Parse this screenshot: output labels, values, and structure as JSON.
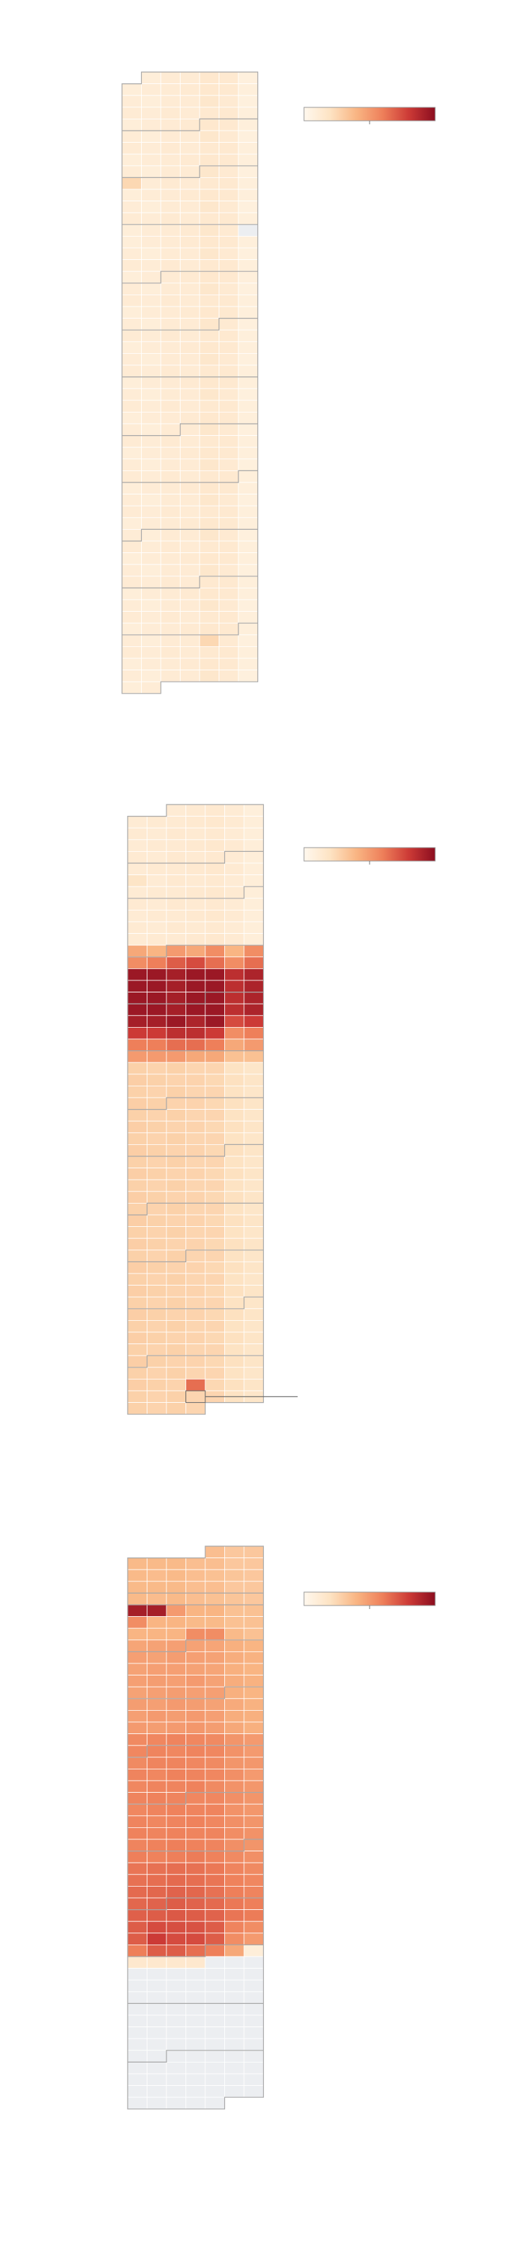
{
  "chart_data": [
    {
      "type": "heatmap",
      "clim": [
        0,
        100
      ],
      "colors": [
        "#fff8ee",
        "#fde3c3",
        "#f9b583",
        "#ee7f5a",
        "#cc3a36",
        "#8b0d1f"
      ],
      "null_color": "#eceef1",
      "values": [
        10,
        12,
        12,
        15,
        14,
        8,
        10,
        11,
        12,
        13,
        15,
        14,
        9,
        11,
        10,
        12,
        12,
        16,
        13,
        8,
        12,
        11,
        13,
        12,
        14,
        14,
        9,
        10,
        11,
        12,
        13,
        15,
        14,
        9,
        11,
        10,
        12,
        12,
        16,
        13,
        8,
        12,
        11,
        13,
        12,
        14,
        14,
        9,
        10,
        11,
        12,
        13,
        15,
        14,
        9,
        11,
        10,
        12,
        12,
        16,
        13,
        8,
        25,
        11,
        13,
        12,
        14,
        14,
        9,
        10,
        11,
        12,
        13,
        15,
        14,
        9,
        11,
        10,
        12,
        12,
        16,
        13,
        8,
        12,
        11,
        13,
        12,
        14,
        14,
        9,
        10,
        11,
        12,
        13,
        16,
        13,
        null,
        10,
        11,
        12,
        13,
        15,
        14,
        9,
        11,
        10,
        12,
        12,
        16,
        13,
        8,
        12,
        11,
        13,
        12,
        14,
        14,
        9,
        10,
        11,
        12,
        13,
        15,
        14,
        9,
        11,
        10,
        12,
        12,
        16,
        13,
        8,
        12,
        11,
        13,
        12,
        14,
        14,
        9,
        10,
        11,
        12,
        13,
        15,
        14,
        9,
        11,
        10,
        12,
        12,
        16,
        13,
        8,
        12,
        11,
        13,
        12,
        14,
        14,
        9,
        10,
        11,
        12,
        13,
        15,
        14,
        9,
        11,
        10,
        12,
        12,
        16,
        13,
        8,
        12,
        11,
        13,
        12,
        14,
        14,
        9,
        10,
        11,
        12,
        13,
        15,
        14,
        9,
        11,
        10,
        12,
        12,
        16,
        13,
        8,
        12,
        11,
        13,
        12,
        14,
        14,
        9,
        10,
        11,
        12,
        13,
        15,
        14,
        9,
        11,
        10,
        12,
        12,
        16,
        13,
        8,
        12,
        11,
        13,
        12,
        14,
        14,
        9,
        10,
        11,
        12,
        13,
        15,
        14,
        9,
        11,
        10,
        12,
        12,
        16,
        13,
        8,
        12,
        11,
        13,
        12,
        14,
        14,
        9,
        10,
        11,
        12,
        13,
        15,
        14,
        9,
        11,
        10,
        12,
        12,
        16,
        13,
        8,
        12,
        11,
        13,
        12,
        14,
        14,
        9,
        10,
        11,
        12,
        13,
        15,
        14,
        9,
        11,
        10,
        12,
        12,
        16,
        13,
        8,
        12,
        11,
        13,
        12,
        14,
        14,
        9,
        10,
        11,
        12,
        13,
        15,
        14,
        9,
        11,
        10,
        12,
        12,
        16,
        13,
        8,
        12,
        11,
        13,
        12,
        14,
        14,
        9,
        10,
        11,
        12,
        13,
        15,
        14,
        9,
        11,
        10,
        12,
        12,
        16,
        13,
        8,
        12,
        11,
        13,
        12,
        14,
        14,
        9,
        10,
        11,
        12,
        13,
        15,
        14,
        9,
        11,
        10,
        12,
        12,
        25,
        13,
        8,
        12,
        11,
        13,
        12,
        14,
        14,
        9,
        10,
        11,
        12,
        13,
        15,
        14,
        9,
        11,
        10,
        12,
        12,
        16,
        13,
        8,
        10,
        11
      ]
    },
    {
      "type": "heatmap",
      "clim": [
        0,
        100
      ],
      "colors": [
        "#fff8ee",
        "#fde3c3",
        "#f9b583",
        "#ee7f5a",
        "#cc3a36",
        "#8b0d1f"
      ],
      "null_color": "#eceef1",
      "values": [
        12,
        13,
        14,
        12,
        9,
        12,
        13,
        13,
        14,
        15,
        13,
        10,
        13,
        12,
        14,
        13,
        14,
        12,
        10,
        12,
        13,
        13,
        14,
        15,
        13,
        10,
        13,
        12,
        14,
        13,
        14,
        12,
        10,
        12,
        13,
        13,
        14,
        15,
        13,
        10,
        18,
        12,
        14,
        13,
        14,
        12,
        10,
        12,
        13,
        13,
        14,
        15,
        13,
        10,
        13,
        12,
        14,
        13,
        14,
        12,
        10,
        12,
        13,
        13,
        14,
        15,
        13,
        10,
        13,
        12,
        14,
        13,
        14,
        12,
        10,
        12,
        13,
        13,
        14,
        15,
        13,
        10,
        45,
        40,
        50,
        45,
        55,
        40,
        55,
        55,
        60,
        70,
        75,
        65,
        55,
        65,
        95,
        95,
        92,
        95,
        95,
        85,
        90,
        95,
        95,
        92,
        95,
        95,
        85,
        90,
        95,
        95,
        92,
        95,
        95,
        85,
        90,
        95,
        95,
        92,
        95,
        95,
        85,
        90,
        92,
        92,
        95,
        90,
        95,
        75,
        80,
        80,
        80,
        85,
        85,
        80,
        55,
        60,
        60,
        60,
        65,
        65,
        60,
        45,
        50,
        50,
        50,
        50,
        45,
        45,
        35,
        35,
        28,
        27,
        28,
        26,
        26,
        20,
        17,
        29,
        28,
        27,
        27,
        25,
        21,
        18,
        28,
        27,
        28,
        26,
        26,
        20,
        17,
        29,
        28,
        27,
        27,
        25,
        21,
        18,
        28,
        27,
        28,
        26,
        26,
        20,
        17,
        29,
        28,
        27,
        27,
        25,
        21,
        18,
        28,
        27,
        28,
        26,
        26,
        20,
        17,
        29,
        28,
        27,
        27,
        25,
        21,
        18,
        28,
        27,
        28,
        26,
        26,
        20,
        17,
        29,
        28,
        27,
        27,
        25,
        21,
        18,
        28,
        27,
        28,
        26,
        26,
        20,
        17,
        29,
        28,
        27,
        27,
        25,
        21,
        18,
        28,
        27,
        28,
        26,
        26,
        20,
        17,
        29,
        28,
        27,
        27,
        25,
        21,
        18,
        28,
        27,
        28,
        26,
        26,
        20,
        17,
        29,
        28,
        27,
        27,
        25,
        21,
        18,
        28,
        27,
        28,
        26,
        26,
        20,
        17,
        29,
        28,
        27,
        27,
        25,
        21,
        18,
        28,
        27,
        28,
        26,
        26,
        20,
        17,
        29,
        28,
        27,
        27,
        25,
        21,
        18,
        28,
        27,
        28,
        26,
        26,
        20,
        17,
        29,
        28,
        27,
        27,
        25,
        21,
        18,
        28,
        27,
        28,
        26,
        26,
        20,
        17,
        29,
        28,
        27,
        27,
        25,
        21,
        18,
        28,
        27,
        28,
        26,
        26,
        20,
        17,
        29,
        28,
        27,
        27,
        25,
        21,
        18,
        28,
        27,
        28,
        26,
        26,
        20,
        17,
        29,
        28,
        27,
        65,
        25,
        21,
        18,
        28,
        27,
        28,
        26,
        26,
        20,
        17,
        28,
        27,
        28,
        26
      ]
    },
    {
      "type": "heatmap",
      "clim": [
        0,
        100
      ],
      "colors": [
        "#fff8ee",
        "#fde3c3",
        "#f9b583",
        "#ee7f5a",
        "#cc3a36",
        "#8b0d1f"
      ],
      "null_color": "#eceef1",
      "values": [
        36,
        32,
        32,
        38,
        38,
        38,
        36,
        36,
        32,
        32,
        38,
        37,
        38,
        36,
        35,
        33,
        32,
        38,
        38,
        38,
        36,
        36,
        32,
        32,
        38,
        37,
        38,
        36,
        35,
        33,
        32,
        92,
        92,
        50,
        40,
        40,
        35,
        35,
        55,
        40,
        40,
        38,
        38,
        35,
        35,
        40,
        40,
        40,
        55,
        55,
        38,
        35,
        46,
        47,
        48,
        47,
        46,
        42,
        40,
        48,
        47,
        49,
        48,
        47,
        43,
        41,
        47,
        48,
        48,
        47,
        46,
        42,
        40,
        48,
        49,
        48,
        50,
        47,
        43,
        41,
        47,
        48,
        49,
        48,
        48,
        42,
        40,
        49,
        48,
        50,
        49,
        47,
        44,
        41,
        48,
        50,
        49,
        50,
        48,
        43,
        42,
        50,
        49,
        50,
        51,
        49,
        45,
        42,
        56,
        57,
        58,
        57,
        56,
        52,
        50,
        57,
        58,
        57,
        58,
        57,
        53,
        50,
        56,
        58,
        58,
        57,
        56,
        52,
        51,
        58,
        57,
        59,
        58,
        57,
        54,
        50,
        57,
        58,
        58,
        59,
        56,
        53,
        51,
        58,
        59,
        58,
        57,
        57,
        54,
        52,
        57,
        58,
        59,
        58,
        58,
        53,
        51,
        58,
        57,
        58,
        59,
        57,
        54,
        52,
        59,
        58,
        59,
        58,
        58,
        55,
        53,
        58,
        59,
        60,
        59,
        58,
        54,
        52,
        60,
        59,
        60,
        61,
        59,
        56,
        54,
        63,
        64,
        65,
        64,
        62,
        58,
        56,
        64,
        65,
        66,
        65,
        63,
        59,
        57,
        66,
        67,
        68,
        67,
        64,
        60,
        58,
        67,
        68,
        70,
        68,
        66,
        62,
        60,
        69,
        70,
        71,
        70,
        68,
        63,
        61,
        70,
        75,
        74,
        73,
        70,
        58,
        55,
        70,
        80,
        75,
        75,
        70,
        55,
        50,
        60,
        70,
        70,
        65,
        60,
        45,
        10,
        15,
        15,
        15,
        15,
        null,
        null,
        null,
        null,
        null,
        null,
        null,
        null,
        null,
        null,
        null,
        null,
        null,
        null,
        null,
        null,
        null,
        null,
        null,
        null,
        null,
        null,
        null,
        null,
        null,
        null,
        null,
        null,
        null,
        null,
        null,
        null,
        null,
        null,
        null,
        null,
        null,
        null,
        null,
        null,
        null,
        null,
        null,
        null,
        null,
        null,
        null,
        null,
        null,
        null,
        null,
        null,
        null,
        null,
        null,
        null,
        null,
        null,
        null,
        null,
        null,
        null,
        null,
        null,
        null,
        null,
        null,
        null,
        null,
        null,
        null,
        null,
        null,
        null,
        null,
        null,
        null,
        null,
        null,
        null,
        null,
        null,
        null,
        null,
        null
      ]
    }
  ]
}
